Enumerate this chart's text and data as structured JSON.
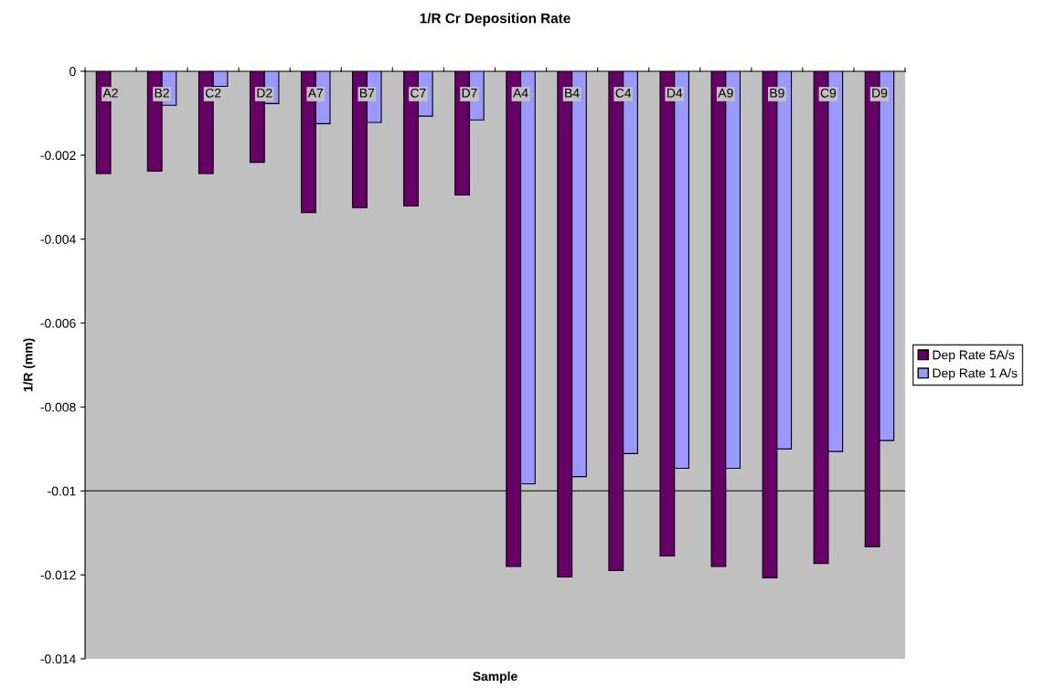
{
  "chart_data": {
    "type": "bar",
    "title": "1/R Cr Deposition Rate",
    "xlabel": "Sample",
    "ylabel": "1/R (mm)",
    "categories": [
      "A2",
      "B2",
      "C2",
      "D2",
      "A7",
      "B7",
      "C7",
      "D7",
      "A4",
      "B4",
      "C4",
      "D4",
      "A9",
      "B9",
      "C9",
      "D9"
    ],
    "series": [
      {
        "name": "Dep Rate 5A/s",
        "color": "#660066",
        "values": [
          -0.00244,
          -0.00238,
          -0.00244,
          -0.00217,
          -0.00337,
          -0.00325,
          -0.00321,
          -0.00295,
          -0.0118,
          -0.01205,
          -0.0119,
          -0.01155,
          -0.0118,
          -0.01207,
          -0.01173,
          -0.01133
        ]
      },
      {
        "name": "Dep Rate 1 A/s",
        "color": "#9999ff",
        "values": [
          null,
          -0.00081,
          -0.00036,
          -0.00077,
          -0.00125,
          -0.00122,
          -0.00107,
          -0.00116,
          -0.00983,
          -0.00966,
          -0.00911,
          -0.00946,
          -0.00946,
          -0.009,
          -0.00906,
          -0.0088
        ]
      }
    ],
    "ylim": [
      -0.014,
      0
    ],
    "yticks": [
      {
        "value": -0.014,
        "label": "-0.014"
      },
      {
        "value": -0.012,
        "label": "-0.012"
      },
      {
        "value": -0.01,
        "label": "-0.01"
      },
      {
        "value": -0.008,
        "label": "-0.008"
      },
      {
        "value": -0.006,
        "label": "-0.006"
      },
      {
        "value": -0.004,
        "label": "-0.004"
      },
      {
        "value": -0.002,
        "label": "-0.002"
      },
      0
    ],
    "ref_lines": [
      {
        "axis": "y",
        "value": -0.01,
        "color": "#404040"
      }
    ],
    "legend": "right"
  }
}
